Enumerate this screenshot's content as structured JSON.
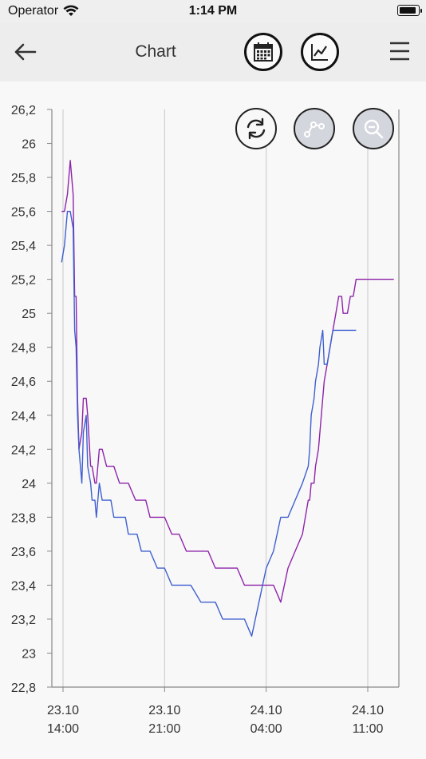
{
  "status_bar": {
    "carrier": "Operator",
    "time": "1:14 PM"
  },
  "header": {
    "title": "Chart",
    "back_icon": "arrow-left-icon",
    "calendar_icon": "calendar-icon",
    "chart_type_icon": "line-chart-icon",
    "menu_icon": "hamburger-menu-icon"
  },
  "tools": {
    "refresh_icon": "refresh-icon",
    "points_icon": "data-points-icon",
    "zoom_icon": "zoom-out-icon"
  },
  "colors": {
    "series_purple": "#8e24aa",
    "series_blue": "#3f5fd0",
    "grid": "#d0d0d0",
    "axis": "#888888"
  },
  "chart_data": {
    "type": "line",
    "title": "",
    "xlabel": "",
    "ylabel": "",
    "ylim": [
      22.8,
      26.2
    ],
    "yticks": [
      22.8,
      23,
      23.2,
      23.4,
      23.6,
      23.8,
      24,
      24.2,
      24.4,
      24.6,
      24.8,
      25,
      25.2,
      25.4,
      25.6,
      25.8,
      26,
      26.2
    ],
    "ytick_labels": [
      "22,8",
      "23",
      "23,2",
      "23,4",
      "23,6",
      "23,8",
      "24",
      "24,2",
      "24,4",
      "24,6",
      "24,8",
      "25",
      "25,2",
      "25,4",
      "25,6",
      "25,8",
      "26",
      "26,2"
    ],
    "xlim_hours": [
      13.8,
      35.2
    ],
    "xticks_hours": [
      14,
      21,
      28,
      35
    ],
    "xtick_labels": [
      {
        "date": "23.10",
        "time": "14:00"
      },
      {
        "date": "23.10",
        "time": "21:00"
      },
      {
        "date": "24.10",
        "time": "04:00"
      },
      {
        "date": "24.10",
        "time": "11:00"
      }
    ],
    "x_hours_note_unit": "hours since 23.10 00:00",
    "series": [
      {
        "color": "#8e24aa",
        "x": [
          13.9,
          14.1,
          14.3,
          14.4,
          14.5,
          14.7,
          14.8,
          14.9,
          15.0,
          15.1,
          15.3,
          15.4,
          15.6,
          15.7,
          15.9,
          16.0,
          16.2,
          16.3,
          16.5,
          16.7,
          17.0,
          17.3,
          17.5,
          17.9,
          18.0,
          18.3,
          18.5,
          19.0,
          19.1,
          19.4,
          19.7,
          20.0,
          20.5,
          20.9,
          21.0,
          21.5,
          22.0,
          22.5,
          22.8,
          23.5,
          24.0,
          24.5,
          25.0,
          25.5,
          26.0,
          26.5,
          27.0,
          27.5,
          28.0,
          28.5,
          29.0,
          29.5,
          30.0,
          30.5,
          30.9,
          31.0,
          31.1,
          31.3,
          31.4,
          31.6,
          31.7,
          31.9,
          32.0,
          32.2,
          32.4,
          32.6,
          32.8,
          33.0,
          33.2,
          33.3,
          33.4,
          33.6,
          33.8,
          34.0,
          34.2,
          34.4,
          34.6,
          34.8,
          35.0,
          35.1,
          35.3,
          35.5,
          35.6,
          35.8,
          36.0,
          36.2,
          36.4,
          36.6,
          36.8
        ],
        "values": [
          25.6,
          25.6,
          25.7,
          25.8,
          25.9,
          25.7,
          25.1,
          25.1,
          24.5,
          24.2,
          24.3,
          24.5,
          24.5,
          24.4,
          24.1,
          24.1,
          24.0,
          24.0,
          24.2,
          24.2,
          24.1,
          24.1,
          24.1,
          24.0,
          24.0,
          24.0,
          24.0,
          23.9,
          23.9,
          23.9,
          23.9,
          23.8,
          23.8,
          23.8,
          23.8,
          23.7,
          23.7,
          23.6,
          23.6,
          23.6,
          23.6,
          23.5,
          23.5,
          23.5,
          23.5,
          23.4,
          23.4,
          23.4,
          23.4,
          23.4,
          23.3,
          23.5,
          23.6,
          23.7,
          23.9,
          23.9,
          24.0,
          24.0,
          24.1,
          24.2,
          24.3,
          24.5,
          24.6,
          24.7,
          24.8,
          24.9,
          25.0,
          25.1,
          25.1,
          25.0,
          25.0,
          25.0,
          25.1,
          25.1,
          25.2,
          25.2,
          25.2,
          25.2,
          25.2,
          25.2,
          25.2,
          25.2,
          25.2,
          25.2,
          25.2,
          25.2,
          25.2,
          25.2,
          25.2
        ]
      },
      {
        "color": "#3f5fd0",
        "x": [
          13.9,
          14.1,
          14.3,
          14.5,
          14.7,
          14.8,
          14.9,
          15.0,
          15.1,
          15.3,
          15.4,
          15.6,
          15.7,
          15.9,
          16.0,
          16.2,
          16.3,
          16.5,
          16.7,
          17.0,
          17.3,
          17.5,
          17.9,
          18.0,
          18.3,
          18.5,
          19.0,
          19.1,
          19.4,
          19.7,
          20.0,
          20.5,
          20.9,
          21.0,
          21.5,
          22.0,
          22.5,
          22.8,
          23.5,
          24.0,
          24.5,
          25.0,
          25.5,
          26.0,
          26.5,
          27.0,
          27.5,
          28.0,
          28.5,
          29.0,
          29.5,
          30.0,
          30.5,
          30.9,
          31.0,
          31.1,
          31.3,
          31.4,
          31.6,
          31.7,
          31.9,
          32.0,
          32.2,
          32.4,
          32.6,
          32.8,
          33.0,
          33.2,
          33.4,
          33.6,
          33.8,
          34.0,
          34.2
        ],
        "values": [
          25.3,
          25.4,
          25.6,
          25.6,
          25.5,
          24.9,
          24.8,
          24.4,
          24.2,
          24.0,
          24.3,
          24.4,
          24.1,
          24.0,
          23.9,
          23.9,
          23.8,
          24.0,
          23.9,
          23.9,
          23.9,
          23.8,
          23.8,
          23.8,
          23.8,
          23.7,
          23.7,
          23.7,
          23.6,
          23.6,
          23.6,
          23.5,
          23.5,
          23.5,
          23.4,
          23.4,
          23.4,
          23.4,
          23.3,
          23.3,
          23.3,
          23.2,
          23.2,
          23.2,
          23.2,
          23.1,
          23.3,
          23.5,
          23.6,
          23.8,
          23.8,
          23.9,
          24.0,
          24.1,
          24.2,
          24.4,
          24.5,
          24.6,
          24.7,
          24.8,
          24.9,
          24.7,
          24.7,
          24.8,
          24.9,
          24.9,
          24.9,
          24.9,
          24.9,
          24.9,
          24.9,
          24.9,
          24.9
        ]
      }
    ]
  }
}
